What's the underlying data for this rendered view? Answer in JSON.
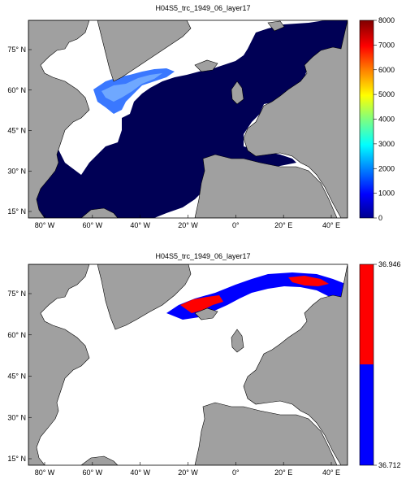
{
  "maps": [
    {
      "title": "H04S5_trc_1949_06_layer17",
      "lat_ticks": [
        "75° N",
        "60° N",
        "45° N",
        "30° N",
        "15° N"
      ],
      "lon_ticks": [
        "80° W",
        "60° W",
        "40° W",
        "20° W",
        "0°",
        "20° E",
        "40° E"
      ],
      "colorbar": {
        "type": "continuous",
        "ticks": [
          "0",
          "1000",
          "2000",
          "3000",
          "4000",
          "5000",
          "6000",
          "7000",
          "8000"
        ],
        "range": [
          0,
          8000
        ],
        "colormap": [
          "#00008f",
          "#0000ff",
          "#00ffff",
          "#ffff00",
          "#ff7f00",
          "#ff0000",
          "#7f0000"
        ]
      }
    },
    {
      "title": "H04S5_trc_1949_06_layer17",
      "lat_ticks": [
        "75° N",
        "60° N",
        "45° N",
        "30° N",
        "15° N"
      ],
      "lon_ticks": [
        "80° W",
        "60° W",
        "40° W",
        "20° W",
        "0°",
        "20° E",
        "40° E"
      ],
      "colorbar": {
        "type": "binary",
        "ticks": [
          "36.946",
          "36.712"
        ],
        "range": [
          36.712,
          36.946
        ],
        "colors": [
          "#ff0000",
          "#0000ff"
        ]
      }
    }
  ],
  "colors": {
    "land": "#a0a0a0",
    "ocean_fill": "#000055",
    "background": "#ffffff"
  }
}
